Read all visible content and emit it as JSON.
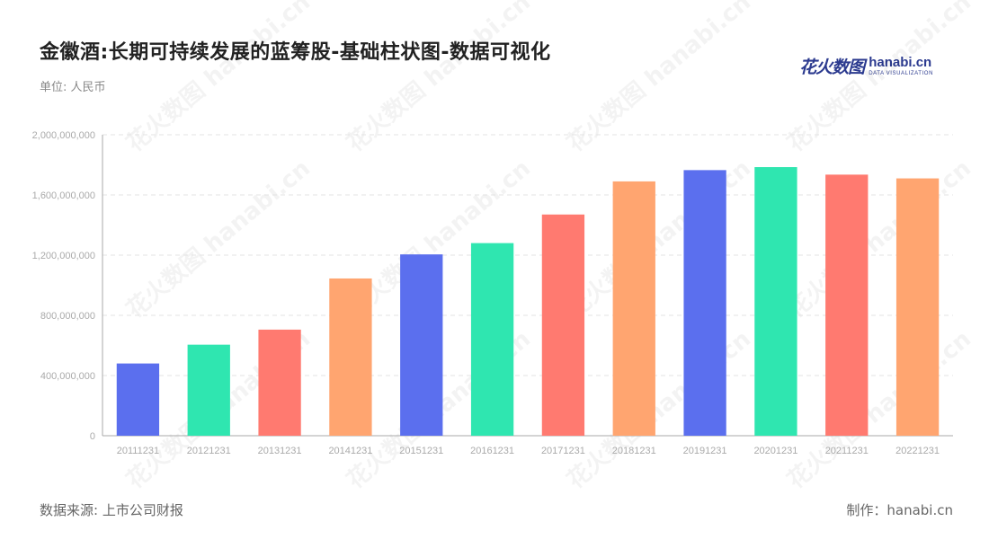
{
  "header": {
    "title": "金徽酒:长期可持续发展的蓝筹股-基础柱状图-数据可视化",
    "unit": "单位: 人民币"
  },
  "logo": {
    "cn": "花火数图",
    "en": "hanabi.cn",
    "sub": "DATA VISUALIZATION"
  },
  "footer": {
    "source": "数据来源: 上市公司财报",
    "maker": "制作：hanabi.cn"
  },
  "colors": {
    "palette": [
      "#5b6fee",
      "#2fe6b0",
      "#ff7a70",
      "#ffa570"
    ],
    "grid": "#e3e3e3",
    "axis": "#aaaaaa",
    "tick_text": "#aaaaaa"
  },
  "chart_data": {
    "type": "bar",
    "title": "金徽酒:长期可持续发展的蓝筹股-基础柱状图-数据可视化",
    "xlabel": "",
    "ylabel": "",
    "categories": [
      "20111231",
      "20121231",
      "20131231",
      "20141231",
      "20151231",
      "20161231",
      "20171231",
      "20181231",
      "20191231",
      "20201231",
      "20211231",
      "20221231"
    ],
    "values": [
      480000000,
      605000000,
      705000000,
      1045000000,
      1205000000,
      1280000000,
      1470000000,
      1690000000,
      1765000000,
      1785000000,
      1735000000,
      1710000000
    ],
    "ylim": [
      0,
      2000000000
    ],
    "yticks": [
      0,
      400000000,
      800000000,
      1200000000,
      1600000000,
      2000000000
    ],
    "ytick_labels": [
      "0",
      "400,000,000",
      "800,000,000",
      "1,200,000,000",
      "1,600,000,000",
      "2,000,000,000"
    ],
    "grid": true,
    "legend": "none"
  }
}
